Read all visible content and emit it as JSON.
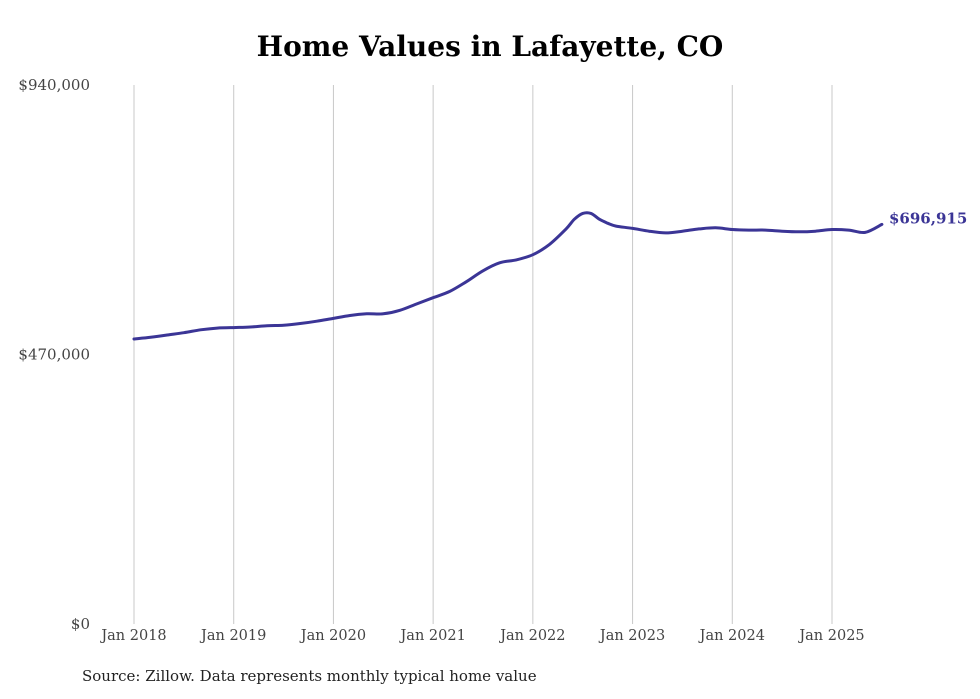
{
  "chart_data": {
    "type": "line",
    "title": "Home Values in Lafayette, CO",
    "source": "Source: Zillow. Data represents monthly typical home value",
    "ylim": [
      0,
      940000
    ],
    "y_ticks": [
      {
        "value": 0,
        "label": "$0"
      },
      {
        "value": 470000,
        "label": "$470,000"
      },
      {
        "value": 940000,
        "label": "$940,000"
      }
    ],
    "x_ticks": [
      {
        "value": "2018-01",
        "label": "Jan 2018"
      },
      {
        "value": "2019-01",
        "label": "Jan 2019"
      },
      {
        "value": "2020-01",
        "label": "Jan 2020"
      },
      {
        "value": "2021-01",
        "label": "Jan 2021"
      },
      {
        "value": "2022-01",
        "label": "Jan 2022"
      },
      {
        "value": "2023-01",
        "label": "Jan 2023"
      },
      {
        "value": "2024-01",
        "label": "Jan 2024"
      },
      {
        "value": "2025-01",
        "label": "Jan 2025"
      }
    ],
    "grid": {
      "vertical": true,
      "horizontal": false
    },
    "colors": {
      "line": "#3b3596",
      "grid": "#c8c8c8",
      "text": "#444444"
    },
    "series": [
      {
        "end_label": "$696,915",
        "points": [
          [
            "2018-01",
            497000
          ],
          [
            "2018-03",
            500000
          ],
          [
            "2018-05",
            504000
          ],
          [
            "2018-07",
            508000
          ],
          [
            "2018-09",
            513000
          ],
          [
            "2018-11",
            516000
          ],
          [
            "2019-01",
            517000
          ],
          [
            "2019-03",
            518000
          ],
          [
            "2019-05",
            520000
          ],
          [
            "2019-07",
            521000
          ],
          [
            "2019-09",
            524000
          ],
          [
            "2019-11",
            528000
          ],
          [
            "2020-01",
            533000
          ],
          [
            "2020-03",
            538000
          ],
          [
            "2020-05",
            541000
          ],
          [
            "2020-07",
            541000
          ],
          [
            "2020-09",
            547000
          ],
          [
            "2020-11",
            558000
          ],
          [
            "2021-01",
            569000
          ],
          [
            "2021-03",
            580000
          ],
          [
            "2021-05",
            597000
          ],
          [
            "2021-07",
            616000
          ],
          [
            "2021-09",
            630000
          ],
          [
            "2021-11",
            635000
          ],
          [
            "2022-01",
            644000
          ],
          [
            "2022-03",
            662000
          ],
          [
            "2022-05",
            689000
          ],
          [
            "2022-06",
            706000
          ],
          [
            "2022-07",
            716000
          ],
          [
            "2022-08",
            716000
          ],
          [
            "2022-09",
            706000
          ],
          [
            "2022-10",
            699000
          ],
          [
            "2022-11",
            694000
          ],
          [
            "2023-01",
            690000
          ],
          [
            "2023-03",
            685000
          ],
          [
            "2023-05",
            682000
          ],
          [
            "2023-07",
            685000
          ],
          [
            "2023-09",
            689000
          ],
          [
            "2023-11",
            691000
          ],
          [
            "2024-01",
            688000
          ],
          [
            "2024-03",
            687000
          ],
          [
            "2024-05",
            687000
          ],
          [
            "2024-07",
            685000
          ],
          [
            "2024-09",
            684000
          ],
          [
            "2024-11",
            685000
          ],
          [
            "2025-01",
            688000
          ],
          [
            "2025-03",
            687000
          ],
          [
            "2025-05",
            683000
          ],
          [
            "2025-07",
            696915
          ]
        ]
      }
    ]
  }
}
